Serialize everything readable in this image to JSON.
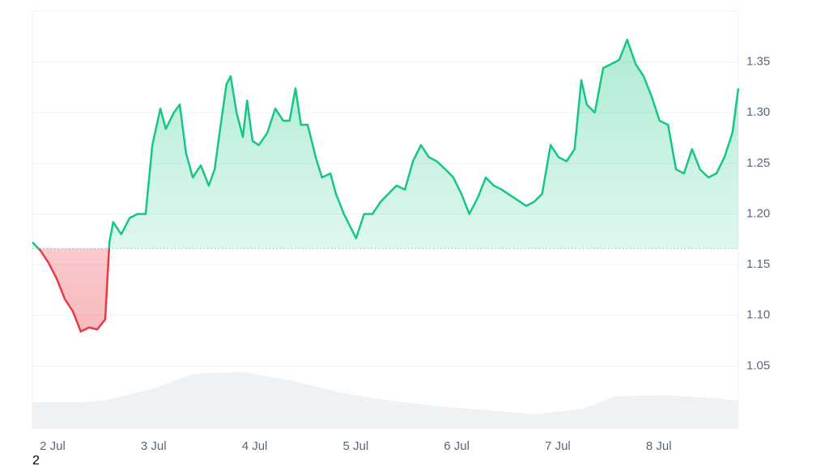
{
  "chart_data": {
    "type": "line",
    "x": [
      -4.8,
      -2.9,
      -1,
      1,
      2.9,
      4.8,
      6.7,
      8.7,
      10.6,
      12.5,
      13.5,
      14.4,
      16.3,
      18.3,
      20.2,
      22.1,
      23.7,
      25.6,
      26.9,
      28.8,
      30.2,
      31.7,
      33.3,
      35.2,
      37.1,
      38.5,
      39.8,
      41.3,
      42.3,
      43.7,
      45.2,
      46.2,
      47.5,
      49,
      51,
      52.9,
      54.8,
      56.3,
      57.7,
      59,
      60.6,
      62.5,
      64,
      66,
      67.3,
      69.2,
      72.1,
      74,
      76,
      77.9,
      79.8,
      81.7,
      83.7,
      85.6,
      87.5,
      89.4,
      91.3,
      93.3,
      95.2,
      97.1,
      99,
      101,
      102.9,
      104.8,
      106.7,
      109.6,
      112.5,
      114.4,
      116.3,
      118.3,
      120.2,
      122.1,
      124,
      125.6,
      126.9,
      128.8,
      130.8,
      132.7,
      134.6,
      136.5,
      138.5,
      140.4,
      142.3,
      144.2,
      146.2,
      148.1,
      150,
      151.9,
      153.8,
      155.8,
      157.7,
      159.6,
      161.5,
      162.9
    ],
    "values": [
      1.172,
      1.164,
      1.152,
      1.136,
      1.116,
      1.104,
      1.084,
      1.088,
      1.086,
      1.096,
      1.172,
      1.192,
      1.18,
      1.196,
      1.2,
      1.2,
      1.268,
      1.304,
      1.284,
      1.3,
      1.308,
      1.26,
      1.236,
      1.248,
      1.228,
      1.244,
      1.284,
      1.328,
      1.336,
      1.3,
      1.276,
      1.312,
      1.272,
      1.268,
      1.28,
      1.304,
      1.292,
      1.292,
      1.324,
      1.288,
      1.288,
      1.256,
      1.236,
      1.24,
      1.22,
      1.2,
      1.176,
      1.2,
      1.2,
      1.212,
      1.22,
      1.228,
      1.224,
      1.252,
      1.268,
      1.256,
      1.252,
      1.244,
      1.236,
      1.22,
      1.2,
      1.216,
      1.236,
      1.228,
      1.224,
      1.216,
      1.208,
      1.212,
      1.22,
      1.268,
      1.256,
      1.252,
      1.264,
      1.332,
      1.308,
      1.3,
      1.344,
      1.348,
      1.352,
      1.372,
      1.348,
      1.336,
      1.316,
      1.292,
      1.288,
      1.244,
      1.24,
      1.264,
      1.244,
      1.236,
      1.24,
      1.256,
      1.28,
      1.324
    ],
    "baseline": 1.166,
    "color_up": "#16c784",
    "color_down": "#ea3943",
    "volume": {
      "x": [
        -4.8,
        6.7,
        12.5,
        24,
        33.7,
        45.2,
        56.7,
        68.3,
        79.8,
        91.3,
        102.9,
        114.4,
        126,
        133.6,
        145.2,
        156.7,
        162.9
      ],
      "values": [
        6.4,
        6.4,
        6.8,
        9.7,
        13.2,
        13.6,
        11.6,
        8.7,
        6.8,
        5.4,
        4.5,
        3.5,
        4.8,
        7.8,
        8.1,
        7.4,
        6.8
      ],
      "color": "#eff2f5"
    },
    "volume_ylim": [
      0,
      100
    ],
    "xlim": [
      -4.8,
      162.9
    ],
    "ylim": [
      0.988,
      1.4
    ],
    "xticks": [
      {
        "value": 0,
        "label": "2 Jul"
      },
      {
        "value": 24,
        "label": "3 Jul"
      },
      {
        "value": 48,
        "label": "4 Jul"
      },
      {
        "value": 72,
        "label": "5 Jul"
      },
      {
        "value": 96,
        "label": "6 Jul"
      },
      {
        "value": 120,
        "label": "7 Jul"
      },
      {
        "value": 144,
        "label": "8 Jul"
      }
    ],
    "yticks": [
      1.05,
      {
        "value": 1.1,
        "label": "1.10"
      },
      1.15,
      {
        "value": 1.2,
        "label": "1.20"
      },
      1.25,
      {
        "value": 1.3,
        "label": "1.30"
      },
      1.35
    ],
    "grid": true,
    "footnote": "2"
  }
}
